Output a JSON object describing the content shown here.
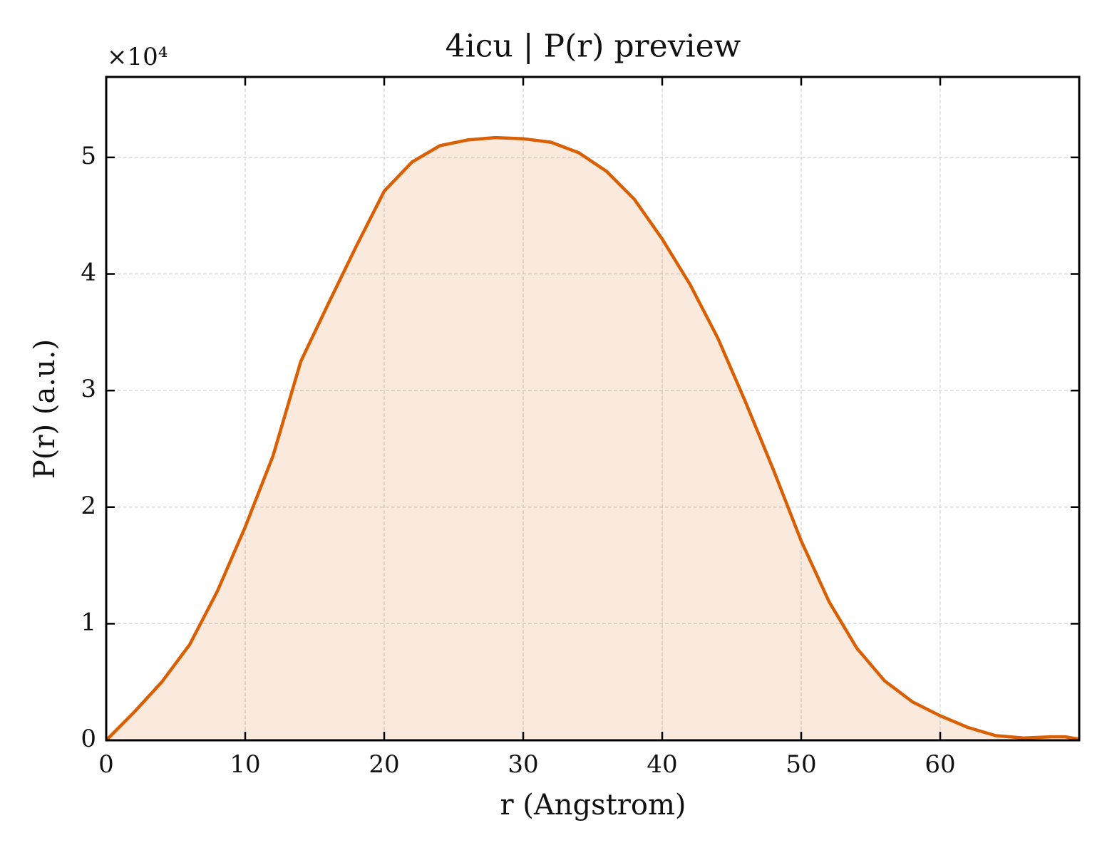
{
  "chart_data": {
    "type": "area-line",
    "title": "4icu | P(r) preview",
    "xlabel": "r (Angstrom)",
    "ylabel": "P(r) (a.u.)",
    "y_offset_text": "×10⁴",
    "x": [
      0,
      2,
      4,
      6,
      8,
      10,
      12,
      14,
      16,
      18,
      20,
      22,
      24,
      26,
      28,
      30,
      32,
      34,
      36,
      38,
      40,
      42,
      44,
      46,
      48,
      50,
      52,
      54,
      56,
      58,
      60,
      62,
      64,
      66,
      68,
      69,
      70
    ],
    "series": [
      {
        "name": "P(r)",
        "color": "#d95f02",
        "values": [
          0,
          0.24,
          0.5,
          0.82,
          1.28,
          1.83,
          2.44,
          3.25,
          3.75,
          4.24,
          4.71,
          4.96,
          5.1,
          5.15,
          5.17,
          5.16,
          5.13,
          5.04,
          4.88,
          4.64,
          4.3,
          3.91,
          3.45,
          2.9,
          2.32,
          1.71,
          1.19,
          0.79,
          0.51,
          0.33,
          0.21,
          0.11,
          0.04,
          0.02,
          0.03,
          0.03,
          0.01
        ]
      }
    ],
    "xlim": [
      0,
      70
    ],
    "xticks": [
      0,
      10,
      20,
      30,
      40,
      50,
      60
    ],
    "ylim": [
      0,
      5.69
    ],
    "yticks": [
      0,
      1,
      2,
      3,
      4,
      5
    ],
    "grid": true
  }
}
